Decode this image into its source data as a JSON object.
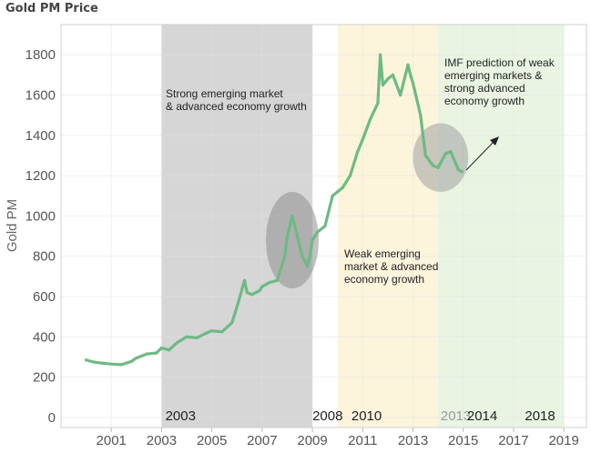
{
  "chart_title": "Gold PM Price",
  "chart_data": {
    "type": "line",
    "title": "Gold PM Price",
    "ylabel": "Gold PM",
    "xlabel": "",
    "xlim": [
      1999.0,
      2019.9
    ],
    "ylim": [
      -50,
      1950
    ],
    "x_ticks": [
      2001,
      2003,
      2005,
      2007,
      2009,
      2011,
      2013,
      2015,
      2017,
      2019
    ],
    "y_ticks": [
      0,
      200,
      400,
      600,
      800,
      1000,
      1200,
      1400,
      1600,
      1800
    ],
    "grid": true,
    "series": [
      {
        "color": "#6dba84",
        "x": [
          2000.0,
          2000.3,
          2000.6,
          2001.0,
          2001.4,
          2001.8,
          2002.0,
          2002.4,
          2002.8,
          2003.0,
          2003.3,
          2003.6,
          2004.0,
          2004.4,
          2004.8,
          2005.0,
          2005.4,
          2005.8,
          2006.0,
          2006.3,
          2006.4,
          2006.6,
          2006.9,
          2007.0,
          2007.3,
          2007.6,
          2007.9,
          2008.0,
          2008.2,
          2008.4,
          2008.6,
          2008.8,
          2008.9,
          2009.0,
          2009.2,
          2009.5,
          2009.8,
          2010.0,
          2010.2,
          2010.5,
          2010.8,
          2011.0,
          2011.3,
          2011.6,
          2011.7,
          2011.8,
          2012.0,
          2012.2,
          2012.5,
          2012.8,
          2012.9,
          2013.0,
          2013.3,
          2013.5,
          2013.8,
          2014.0,
          2014.3,
          2014.5,
          2014.8,
          2014.95
        ],
        "values": [
          285,
          275,
          270,
          265,
          262,
          278,
          295,
          315,
          320,
          345,
          335,
          370,
          400,
          395,
          420,
          430,
          425,
          470,
          550,
          680,
          620,
          610,
          630,
          650,
          670,
          680,
          800,
          900,
          1000,
          900,
          800,
          750,
          800,
          880,
          920,
          950,
          1100,
          1120,
          1140,
          1200,
          1320,
          1380,
          1480,
          1560,
          1800,
          1650,
          1680,
          1700,
          1600,
          1750,
          1700,
          1660,
          1500,
          1300,
          1250,
          1240,
          1310,
          1320,
          1230,
          1220
        ]
      }
    ],
    "shaded_periods": [
      {
        "start": 2003.0,
        "end": 2009.0,
        "color": "#d6d6d6",
        "label": "2003",
        "label_color": "#222222"
      },
      {
        "start": 2010.0,
        "end": 2014.0,
        "color": "#fdf4dc",
        "label": "2010",
        "label_color": "#222222"
      },
      {
        "start": 2014.0,
        "end": 2019.0,
        "color": "#e9f5e2",
        "label": "2014",
        "label_color": "#222222"
      }
    ],
    "era_labels": [
      {
        "text": "2003",
        "x": 2003.15,
        "color": "#222222"
      },
      {
        "text": "2008",
        "x": 2009.0,
        "color": "#222222"
      },
      {
        "text": "2010",
        "x": 2010.55,
        "color": "#222222"
      },
      {
        "text": "2013",
        "x": 2014.1,
        "color": "#9a9a9a"
      },
      {
        "text": "2014",
        "x": 2015.15,
        "color": "#222222"
      },
      {
        "text": "2018",
        "x": 2017.45,
        "color": "#222222"
      }
    ],
    "annotations": [
      {
        "lines": [
          "Strong emerging market",
          "& advanced economy growth"
        ]
      },
      {
        "lines": [
          "Weak emerging",
          "market & advanced",
          "economy growth"
        ]
      },
      {
        "lines": [
          "IMF prediction of weak",
          "emerging markets &",
          "strong advanced",
          "economy growth"
        ]
      }
    ],
    "highlights": [
      {
        "cx": 2008.2,
        "cy": 880,
        "rx": 1.05,
        "ry": 240,
        "color": "#8f8f8f"
      },
      {
        "cx": 2014.1,
        "cy": 1290,
        "rx": 1.1,
        "ry": 170,
        "color": "#a0a0a0"
      }
    ]
  }
}
